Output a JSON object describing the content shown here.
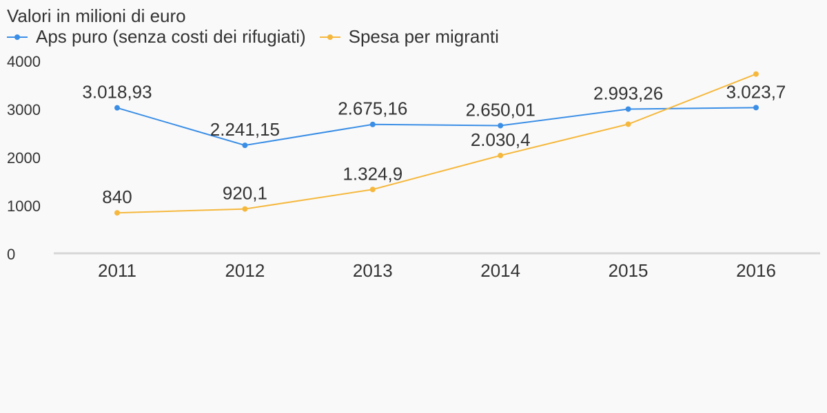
{
  "chart_data": {
    "type": "line",
    "title": "Valori in milioni di euro",
    "categories": [
      "2011",
      "2012",
      "2013",
      "2014",
      "2015",
      "2016"
    ],
    "series": [
      {
        "name": "Aps puro (senza costi dei rifugiati)",
        "color": "#3a8ee6",
        "values": [
          3018.93,
          2241.15,
          2675.16,
          2650.01,
          2993.26,
          3023.7
        ],
        "labels": [
          "3.018,93",
          "2.241,15",
          "2.675,16",
          "2.650,01",
          "2.993,26",
          "3.023,7"
        ]
      },
      {
        "name": "Spesa per migranti",
        "color": "#f5b83d",
        "values": [
          840,
          920.1,
          1324.9,
          2030.4,
          2680,
          3720
        ],
        "labels": [
          "840",
          "920,1",
          "1.324,9",
          "2.030,4",
          "",
          ""
        ]
      }
    ],
    "yticks": [
      "0",
      "1000",
      "2000",
      "3000",
      "4000"
    ],
    "ylim": [
      0,
      4000
    ],
    "grid": false,
    "legend_position": "top-left"
  }
}
